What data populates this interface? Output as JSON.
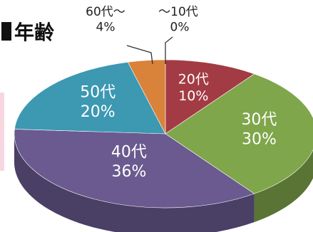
{
  "title": "年齢",
  "chart_data": {
    "type": "pie",
    "title": "年齢",
    "slices": [
      {
        "label": "～10代",
        "value": 0,
        "pct": "0%",
        "color": "#b9b9b9"
      },
      {
        "label": "20代",
        "value": 10,
        "pct": "10%",
        "color": "#a33b44"
      },
      {
        "label": "30代",
        "value": 30,
        "pct": "30%",
        "color": "#7fa64a"
      },
      {
        "label": "40代",
        "value": 36,
        "pct": "36%",
        "color": "#6a5a8f"
      },
      {
        "label": "50代",
        "value": 20,
        "pct": "20%",
        "color": "#3d98b2"
      },
      {
        "label": "60代～",
        "value": 4,
        "pct": "4%",
        "color": "#d9823a"
      }
    ]
  }
}
